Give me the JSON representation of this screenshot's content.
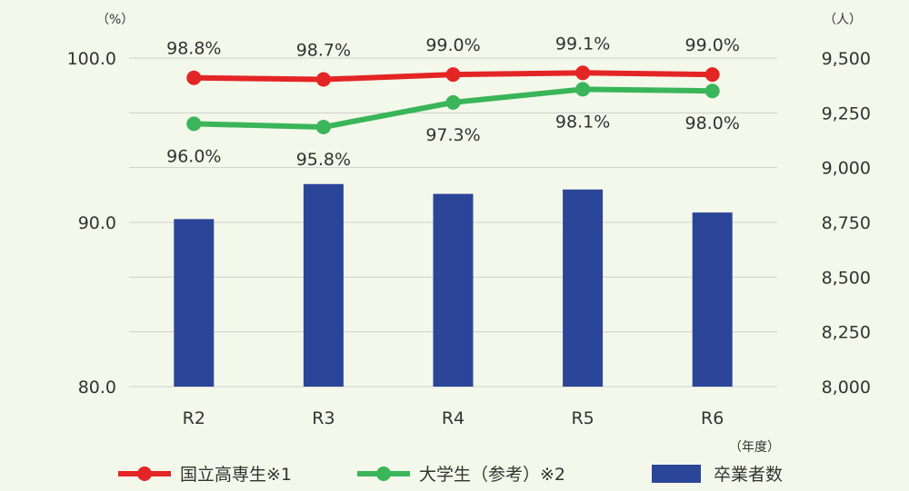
{
  "chart_data": {
    "type": "bar+line",
    "categories": [
      "R2",
      "R3",
      "R4",
      "R5",
      "R6"
    ],
    "x_unit": "（年度）",
    "left_axis": {
      "unit": "（%）",
      "ylim": [
        80,
        100
      ],
      "ticks": [
        80,
        90,
        100
      ],
      "tick_labels": [
        "80.0",
        "90.0",
        "100.0"
      ]
    },
    "right_axis": {
      "unit": "（人）",
      "ylim": [
        8000,
        9500
      ],
      "ticks": [
        8000,
        8250,
        8500,
        8750,
        9000,
        9250,
        9500
      ],
      "tick_labels": [
        "8,000",
        "8,250",
        "8,500",
        "8,750",
        "9,000",
        "9,250",
        "9,500"
      ]
    },
    "grid": true,
    "legend_position": "bottom",
    "series": [
      {
        "name": "国立高専生※1",
        "type": "line",
        "axis": "left",
        "color": "#e42525",
        "values": [
          98.8,
          98.7,
          99.0,
          99.1,
          99.0
        ],
        "data_labels": [
          "98.8%",
          "98.7%",
          "99.0%",
          "99.1%",
          "99.0%"
        ],
        "label_position": "above"
      },
      {
        "name": "大学生（参考）※2",
        "type": "line",
        "axis": "left",
        "color": "#3ab55a",
        "values": [
          96.0,
          95.8,
          97.3,
          98.1,
          98.0
        ],
        "data_labels": [
          "96.0%",
          "95.8%",
          "97.3%",
          "98.1%",
          "98.0%"
        ],
        "label_position": "below"
      },
      {
        "name": "卒業者数",
        "type": "bar",
        "axis": "right",
        "color": "#2b4698",
        "values": [
          8765,
          8925,
          8880,
          8900,
          8795
        ]
      }
    ]
  }
}
